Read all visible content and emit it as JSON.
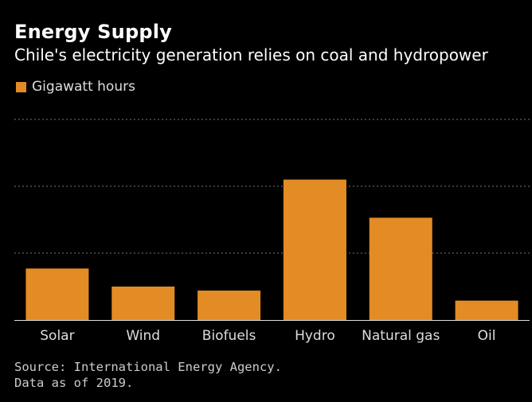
{
  "chart_data": {
    "type": "bar",
    "title": "Energy Supply",
    "subtitle": "Chile's electricity generation relies on coal and hydropower",
    "categories": [
      "Solar",
      "Wind",
      "Biofuels",
      "Hydro",
      "Natural gas",
      "Oil"
    ],
    "series": [
      {
        "name": "Gigawatt hours",
        "values": [
          7700,
          5000,
          4400,
          21000,
          15300,
          2900
        ]
      }
    ],
    "ylim": [
      0,
      30000
    ],
    "gridlines": [
      10000,
      20000,
      30000
    ],
    "grid": true,
    "legend_position": "top-left",
    "bar_color": "#E38B25"
  },
  "source": {
    "line1": "Source: International Energy Agency.",
    "line2": "Data as of 2019."
  }
}
